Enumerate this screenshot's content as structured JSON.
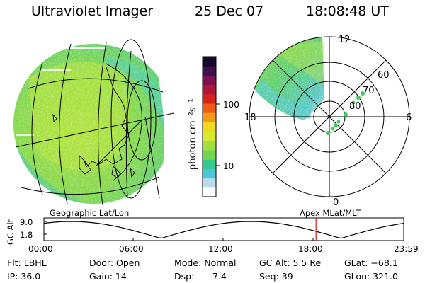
{
  "header": {
    "instrument": "Ultraviolet Imager",
    "date": "25 Dec 07",
    "time": "18:08:48 UT"
  },
  "colorbar": {
    "unit_label": "photon cm⁻²s⁻¹",
    "ticks": [
      "100",
      "10"
    ],
    "colors": [
      "#ffffff",
      "#b8dcec",
      "#49c6d8",
      "#37c88e",
      "#6fd652",
      "#a3e03c",
      "#d8ea2c",
      "#f2d820",
      "#f49a18",
      "#f05a12",
      "#d8221a",
      "#b0163a",
      "#7a1252",
      "#40104e",
      "#16082a"
    ]
  },
  "polar_plot": {
    "mlt_labels": {
      "top": "12",
      "right": "6",
      "bottom": "0",
      "left": "18"
    },
    "lat_labels": [
      "60",
      "70",
      "80"
    ]
  },
  "orbit": {
    "ylabel": "GC Alt",
    "left_title": "Geographic Lat/Lon",
    "right_title": "Apex MLat/MLT",
    "yticks": [
      "9.0",
      "1.8"
    ],
    "time_ticks": [
      "00:00",
      "06:00",
      "12:00",
      "18:00",
      "23:59"
    ],
    "current_time_hours": 18.15
  },
  "info": {
    "filter": "Flt: LBHL",
    "ip": "IP: 36.0",
    "door": "Door: Open",
    "gain": "Gain: 14",
    "mode": "Mode: Normal",
    "dsp_label": "Dsp:",
    "dsp_value": "7.4",
    "gc_alt": "GC Alt: 5.5 Re",
    "seq": "Seq: 39",
    "glat": "GLat: −68.1",
    "glon": "GLon: 321.0"
  }
}
